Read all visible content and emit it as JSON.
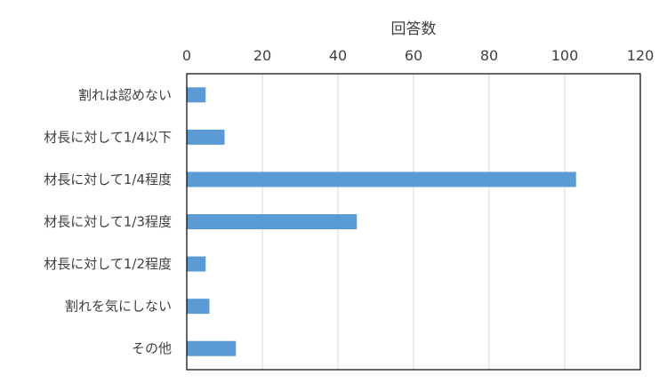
{
  "chart_data": {
    "type": "bar",
    "orientation": "horizontal",
    "title": "",
    "xlabel": "回答数",
    "ylabel": "",
    "xlim": [
      0,
      120
    ],
    "x_ticks": [
      0,
      20,
      40,
      60,
      80,
      100,
      120
    ],
    "x_axis_position": "top",
    "grid": true,
    "legend": "none",
    "categories": [
      "割れは認めない",
      "材長に対して1/4以下",
      "材長に対して1/4程度",
      "材長に対して1/3程度",
      "材長に対して1/2程度",
      "割れを気にしない",
      "その他"
    ],
    "values": [
      5,
      10,
      103,
      45,
      5,
      6,
      13
    ],
    "bar_color": "#5b9bd5",
    "grid_color": "#d9d9d9",
    "frame_color": "#000000"
  }
}
